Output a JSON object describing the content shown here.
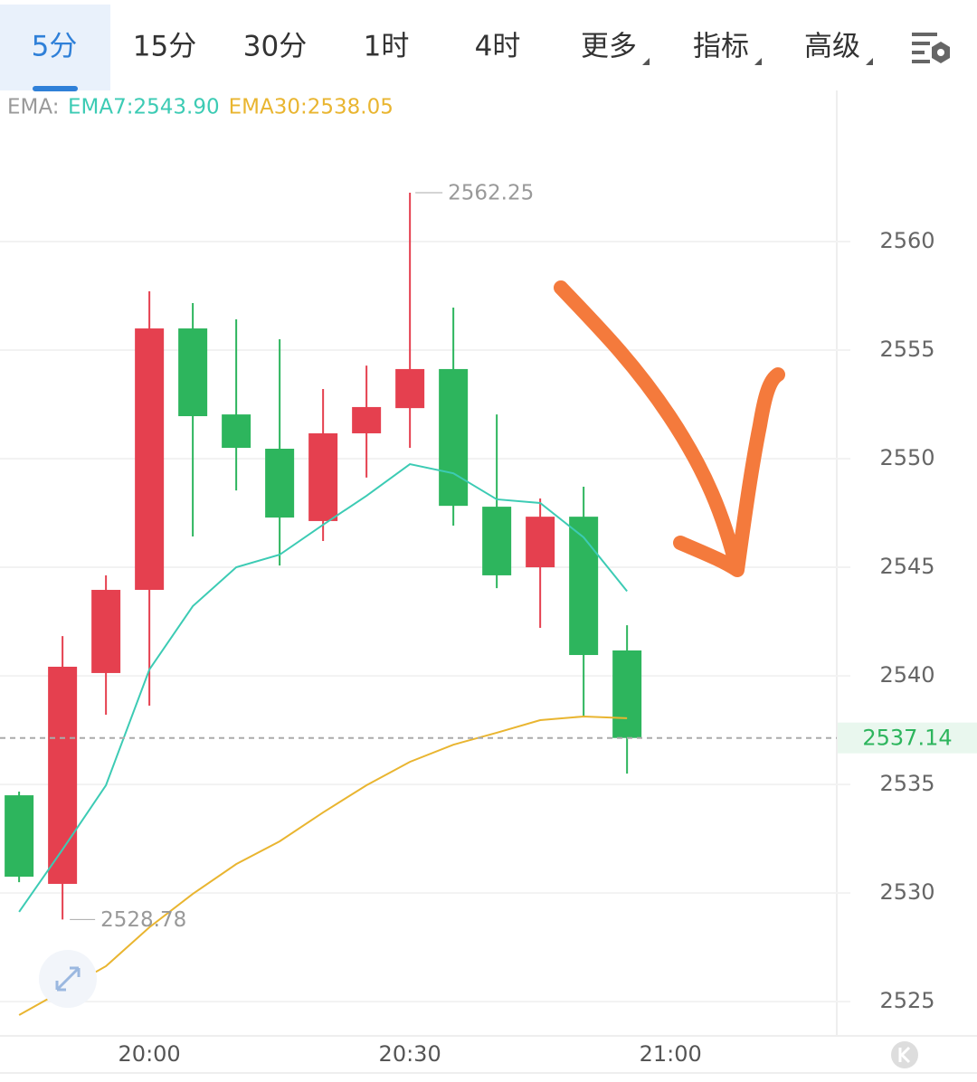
{
  "tabs": [
    "5分",
    "15分",
    "30分",
    "1时",
    "4时",
    "更多",
    "指标",
    "高级"
  ],
  "chart_data": {
    "type": "candlestick",
    "indicator_label": "EMA:",
    "x": [
      0,
      1,
      2,
      3,
      4,
      5,
      6,
      7,
      8,
      9,
      10,
      11,
      12,
      13,
      14
    ],
    "open": [
      2534.5,
      2530.42,
      2540.13,
      2543.96,
      2556.0,
      2552.04,
      2550.46,
      2547.13,
      2551.17,
      2552.33,
      2554.13,
      2547.79,
      2545.0,
      2547.33,
      2541.17
    ],
    "high": [
      2534.67,
      2541.83,
      2544.63,
      2557.71,
      2557.17,
      2556.42,
      2555.5,
      2553.21,
      2554.29,
      2562.25,
      2556.96,
      2552.04,
      2548.17,
      2548.71,
      2542.33
    ],
    "low": [
      2530.5,
      2528.78,
      2538.21,
      2538.63,
      2546.42,
      2548.54,
      2545.08,
      2546.21,
      2549.13,
      2550.5,
      2546.92,
      2544.04,
      2542.21,
      2538.13,
      2535.5
    ],
    "close": [
      2530.75,
      2540.42,
      2543.96,
      2556.0,
      2551.96,
      2550.5,
      2547.29,
      2551.17,
      2552.38,
      2554.13,
      2547.83,
      2544.63,
      2547.33,
      2540.96,
      2537.14
    ],
    "up_color": "#e5404f",
    "down_color": "#2db55d",
    "series": [
      {
        "name": "EMA7:2543.90",
        "color": "#3ccbb4",
        "values": [
          2529.13,
          2532.0,
          2534.96,
          2540.29,
          2543.21,
          2545.0,
          2545.58,
          2546.96,
          2548.29,
          2549.75,
          2549.33,
          2548.13,
          2547.96,
          2546.38,
          2543.9
        ]
      },
      {
        "name": "EMA30:2538.05",
        "color": "#e9b530",
        "values": [
          2524.38,
          2525.5,
          2526.63,
          2528.42,
          2529.96,
          2531.33,
          2532.38,
          2533.71,
          2534.96,
          2536.04,
          2536.83,
          2537.38,
          2537.96,
          2538.13,
          2538.05
        ]
      }
    ],
    "xlim": [
      -0.44,
      18.83
    ],
    "xticks": [
      {
        "value": 3,
        "label": "20:00"
      },
      {
        "value": 9,
        "label": "20:30"
      },
      {
        "value": 15,
        "label": "21:00"
      }
    ],
    "ylim": [
      2523.42,
      2566.96
    ],
    "yticks": [
      2525,
      2530,
      2535,
      2540,
      2545,
      2550,
      2555,
      2560
    ],
    "grid": true
  }
}
